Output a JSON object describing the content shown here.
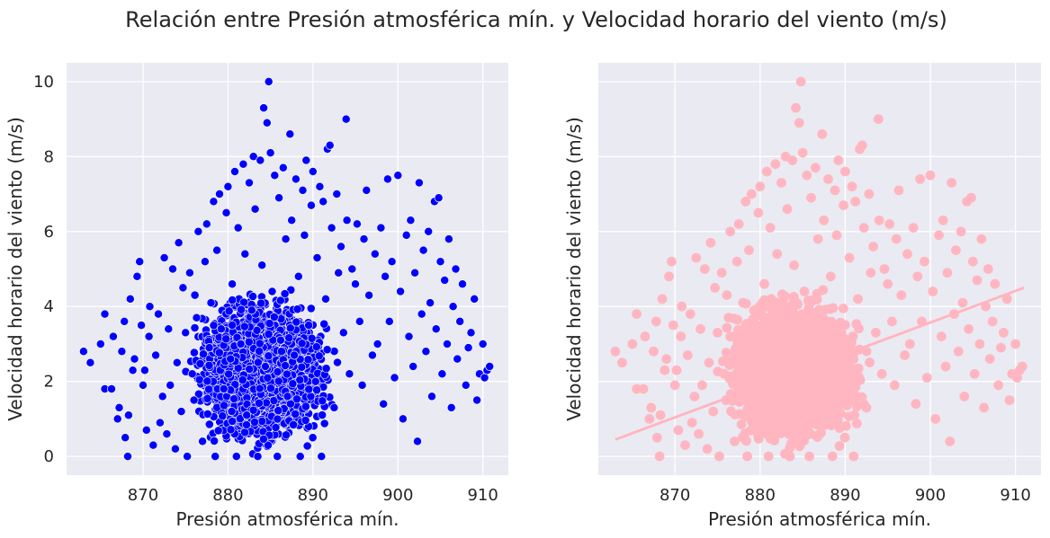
{
  "figure": {
    "title": "Relación entre Presión atmosférica mín. y Velocidad horario del viento (m/s)"
  },
  "colors": {
    "panel_bg": "#eaeaf2",
    "grid": "#ffffff",
    "left_points": "#0000ff",
    "right_points": "#ffb6c1",
    "regression_line": "#ffb6c1"
  },
  "chart_data": [
    {
      "type": "scatter",
      "subplot": "left",
      "xlabel": "Presión atmosférica mín.",
      "ylabel": "Velocidad horario del viento (m/s)",
      "xlim": [
        861,
        913
      ],
      "ylim": [
        -0.5,
        10.5
      ],
      "xticks": [
        870,
        880,
        890,
        900,
        910
      ],
      "yticks": [
        0,
        2,
        4,
        6,
        8,
        10
      ],
      "grid": true,
      "marker": "circle-with-white-edge",
      "cloud": {
        "x_core_range": [
          876,
          893
        ],
        "y_range": [
          0,
          8
        ],
        "note_hidden": true
      },
      "points": [
        [
          863,
          2.8
        ],
        [
          863.8,
          2.5
        ],
        [
          865,
          3.0
        ],
        [
          865.5,
          3.8
        ],
        [
          865.5,
          1.8
        ],
        [
          866.3,
          1.8
        ],
        [
          866.5,
          3.2
        ],
        [
          867,
          1.0
        ],
        [
          867.2,
          1.3
        ],
        [
          867.5,
          2.8
        ],
        [
          867.8,
          3.6
        ],
        [
          867.9,
          0.5
        ],
        [
          868.2,
          0.0
        ],
        [
          868.3,
          1.1
        ],
        [
          868.5,
          4.2
        ],
        [
          868.8,
          2.3
        ],
        [
          869,
          2.6
        ],
        [
          869.3,
          4.8
        ],
        [
          869.6,
          5.2
        ],
        [
          869.8,
          3.5
        ],
        [
          870,
          1.9
        ],
        [
          870.2,
          2.3
        ],
        [
          870.4,
          0.7
        ],
        [
          870.7,
          3.2
        ],
        [
          870.8,
          4.0
        ],
        [
          871.2,
          0.3
        ],
        [
          871.5,
          2.7
        ],
        [
          871.8,
          3.8
        ],
        [
          872,
          0.9
        ],
        [
          872.3,
          1.6
        ],
        [
          872.5,
          5.3
        ],
        [
          872.8,
          0.6
        ],
        [
          873,
          3.4
        ],
        [
          873.2,
          1.9
        ],
        [
          873.5,
          5.0
        ],
        [
          873.8,
          0.2
        ],
        [
          874,
          2.5
        ],
        [
          874.2,
          5.7
        ],
        [
          874.5,
          1.2
        ],
        [
          874.7,
          4.5
        ],
        [
          875,
          3.3
        ],
        [
          875.2,
          0.0
        ],
        [
          875.5,
          4.9
        ],
        [
          875.8,
          2.2
        ],
        [
          876,
          1.5
        ],
        [
          876.3,
          3.7
        ],
        [
          876.5,
          6.0
        ],
        [
          877,
          0.4
        ],
        [
          877.3,
          5.2
        ],
        [
          877.5,
          6.2
        ],
        [
          877.8,
          2.9
        ],
        [
          878,
          4.1
        ],
        [
          878.3,
          6.8
        ],
        [
          878.5,
          0.0
        ],
        [
          878.7,
          5.5
        ],
        [
          879,
          7.0
        ],
        [
          879.2,
          3.4
        ],
        [
          879.5,
          1.8
        ],
        [
          879.8,
          6.5
        ],
        [
          880,
          7.2
        ],
        [
          880.3,
          2.6
        ],
        [
          880.5,
          4.6
        ],
        [
          880.8,
          7.6
        ],
        [
          881,
          0.0
        ],
        [
          881.2,
          6.1
        ],
        [
          881.5,
          3.0
        ],
        [
          881.8,
          7.8
        ],
        [
          882,
          5.4
        ],
        [
          882.2,
          1.1
        ],
        [
          882.5,
          7.3
        ],
        [
          882.8,
          3.9
        ],
        [
          883,
          8.0
        ],
        [
          883.2,
          6.6
        ],
        [
          883.5,
          0.0
        ],
        [
          883.8,
          7.9
        ],
        [
          884,
          5.1
        ],
        [
          884.2,
          9.3
        ],
        [
          884.4,
          2.4
        ],
        [
          884.6,
          8.9
        ],
        [
          884.8,
          10.0
        ],
        [
          885,
          8.1
        ],
        [
          885.2,
          4.4
        ],
        [
          885.5,
          7.5
        ],
        [
          885.8,
          0.0
        ],
        [
          886,
          6.9
        ],
        [
          886.2,
          3.1
        ],
        [
          886.5,
          7.7
        ],
        [
          886.8,
          5.8
        ],
        [
          887,
          1.6
        ],
        [
          887.3,
          8.6
        ],
        [
          887.5,
          6.3
        ],
        [
          887.8,
          2.7
        ],
        [
          888,
          7.4
        ],
        [
          888.3,
          4.8
        ],
        [
          888.5,
          0.0
        ],
        [
          888.8,
          7.1
        ],
        [
          889,
          5.9
        ],
        [
          889.2,
          7.9
        ],
        [
          889.5,
          3.5
        ],
        [
          889.8,
          6.7
        ],
        [
          890,
          7.6
        ],
        [
          890.3,
          2.0
        ],
        [
          890.5,
          5.3
        ],
        [
          890.8,
          7.2
        ],
        [
          891,
          0.0
        ],
        [
          891.2,
          6.8
        ],
        [
          891.5,
          4.2
        ],
        [
          891.7,
          8.2
        ],
        [
          892,
          8.3
        ],
        [
          892.2,
          6.1
        ],
        [
          892.5,
          1.3
        ],
        [
          892.8,
          7.0
        ],
        [
          893,
          4.9
        ],
        [
          893.3,
          5.6
        ],
        [
          893.6,
          3.3
        ],
        [
          893.9,
          9.0
        ],
        [
          894,
          6.3
        ],
        [
          894.3,
          2.2
        ],
        [
          894.6,
          5.0
        ],
        [
          895,
          4.6
        ],
        [
          895.2,
          6.2
        ],
        [
          895.5,
          3.6
        ],
        [
          895.8,
          1.9
        ],
        [
          896,
          5.8
        ],
        [
          896.3,
          7.1
        ],
        [
          896.6,
          4.3
        ],
        [
          897,
          2.7
        ],
        [
          897.3,
          5.4
        ],
        [
          897.6,
          3.0
        ],
        [
          898,
          6.1
        ],
        [
          898.3,
          1.4
        ],
        [
          898.5,
          4.8
        ],
        [
          898.8,
          7.4
        ],
        [
          899,
          3.6
        ],
        [
          899.3,
          5.2
        ],
        [
          899.6,
          2.1
        ],
        [
          900,
          7.5
        ],
        [
          900.3,
          4.4
        ],
        [
          900.6,
          1.0
        ],
        [
          901,
          5.9
        ],
        [
          901.3,
          3.2
        ],
        [
          901.5,
          6.3
        ],
        [
          901.8,
          2.4
        ],
        [
          902,
          4.9
        ],
        [
          902.3,
          0.4
        ],
        [
          902.5,
          7.3
        ],
        [
          902.8,
          3.8
        ],
        [
          903,
          5.5
        ],
        [
          903.3,
          2.8
        ],
        [
          903.6,
          6.0
        ],
        [
          903.8,
          4.1
        ],
        [
          904,
          1.6
        ],
        [
          904.3,
          6.8
        ],
        [
          904.5,
          3.4
        ],
        [
          904.8,
          6.9
        ],
        [
          905,
          5.2
        ],
        [
          905.2,
          2.2
        ],
        [
          905.5,
          4.7
        ],
        [
          905.8,
          3.0
        ],
        [
          906,
          5.8
        ],
        [
          906.3,
          1.3
        ],
        [
          906.5,
          4.0
        ],
        [
          906.8,
          5.0
        ],
        [
          907,
          2.6
        ],
        [
          907.3,
          3.6
        ],
        [
          907.6,
          4.6
        ],
        [
          908,
          1.9
        ],
        [
          908.3,
          2.9
        ],
        [
          908.6,
          3.3
        ],
        [
          909,
          4.2
        ],
        [
          909.3,
          1.5
        ],
        [
          909.6,
          2.2
        ],
        [
          910,
          3.0
        ],
        [
          910.2,
          2.1
        ],
        [
          910.5,
          2.3
        ],
        [
          910.8,
          2.4
        ]
      ]
    },
    {
      "type": "scatter",
      "subplot": "right",
      "xlabel": "Presión atmosférica mín.",
      "ylabel": "Velocidad horario del viento (m/s)",
      "xlim": [
        861,
        913
      ],
      "ylim": [
        -0.5,
        10.5
      ],
      "xticks": [
        870,
        880,
        890,
        900,
        910
      ],
      "yticks": [
        0,
        2,
        4,
        6,
        8,
        10
      ],
      "grid": true,
      "marker": "circle",
      "regression_line": {
        "x": [
          863,
          911
        ],
        "y": [
          0.45,
          4.5
        ]
      }
    }
  ]
}
